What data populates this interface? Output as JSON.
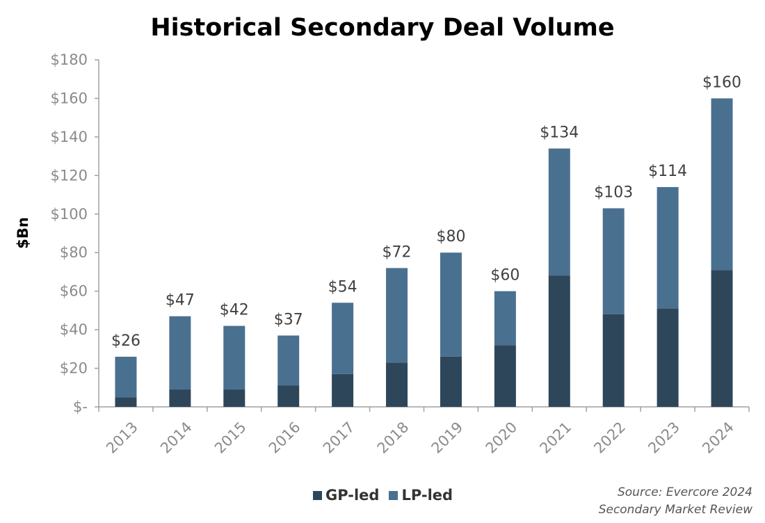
{
  "chart_data": {
    "type": "bar",
    "stacked": true,
    "title": "Historical Secondary Deal Volume",
    "ylabel": "$Bn",
    "xlabel": "",
    "ylim": [
      0,
      180
    ],
    "yticks": [
      "$-",
      "$20",
      "$40",
      "$60",
      "$80",
      "$100",
      "$120",
      "$140",
      "$160",
      "$180"
    ],
    "categories": [
      "2013",
      "2014",
      "2015",
      "2016",
      "2017",
      "2018",
      "2019",
      "2020",
      "2021",
      "2022",
      "2023",
      "2024"
    ],
    "series": [
      {
        "name": "GP-led",
        "color": "#2e4659",
        "values": [
          5,
          9,
          9,
          11,
          17,
          23,
          26,
          32,
          68,
          48,
          51,
          71
        ]
      },
      {
        "name": "LP-led",
        "color": "#4a7090",
        "values": [
          21,
          38,
          33,
          26,
          37,
          49,
          54,
          28,
          66,
          55,
          63,
          89
        ]
      }
    ],
    "total_labels": [
      "$26",
      "$47",
      "$42",
      "$37",
      "$54",
      "$72",
      "$80",
      "$60",
      "$134",
      "$103",
      "$114",
      "$160"
    ],
    "grid": false,
    "legend": "bottom"
  },
  "source": {
    "line1": "Source: Evercore 2024",
    "line2": "Secondary Market Review"
  }
}
